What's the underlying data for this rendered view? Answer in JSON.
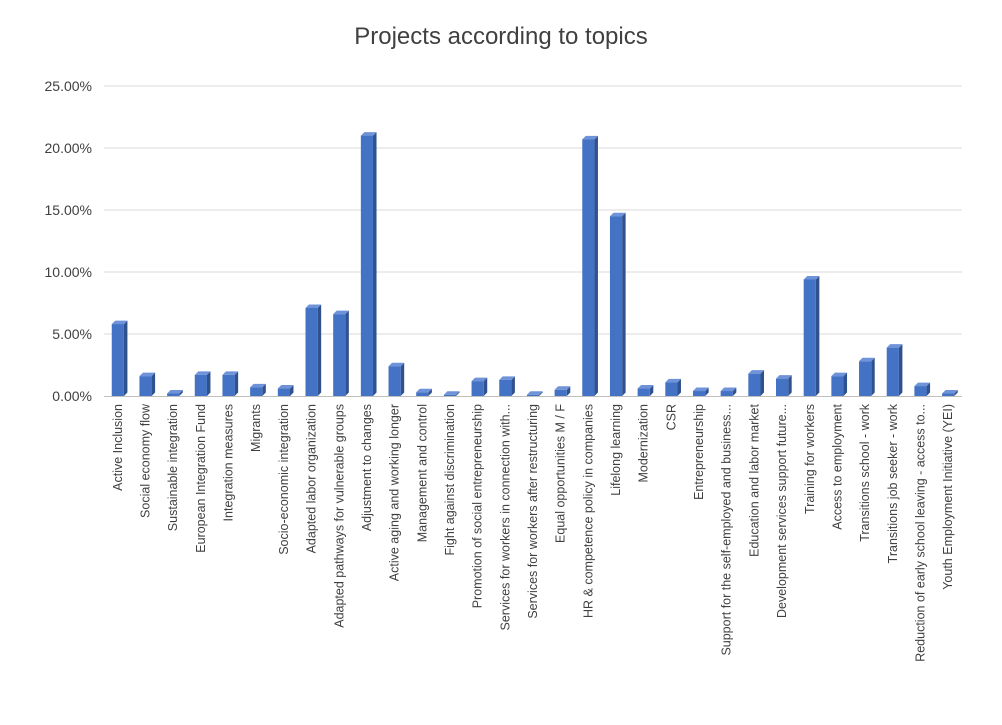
{
  "chart_data": {
    "type": "bar",
    "title": "Projects according to topics",
    "xlabel": "",
    "ylabel": "",
    "ylim": [
      0,
      0.25
    ],
    "yticks": [
      "0.00%",
      "5.00%",
      "10.00%",
      "15.00%",
      "20.00%",
      "25.00%"
    ],
    "grid": true,
    "bar_color": "#4472C4",
    "categories": [
      "Active Inclusion",
      "Social economy flow",
      "Sustainable integration",
      "European Integration Fund",
      "Integration measures",
      "Migrants",
      "Socio-economic integration",
      "Adapted labor organization",
      "Adapted pathways for vulnerable groups",
      "Adjustment to changes",
      "Active aging and working longer",
      "Management and control",
      "Fight against discrimination",
      "Promotion of social entrepreneurship",
      "Services for workers in connection with...",
      "Services for workers after restructuring",
      "Equal opportunities M / F",
      "HR & competence policy in companies",
      "Lifelong learning",
      "Modernization",
      "CSR",
      "Entrepreneurship",
      "Support for the self-employed and business...",
      "Education and labor market",
      "Development services support future...",
      "Training for workers",
      "Access to employment",
      "Transitions school - work",
      "Transitions job seeker - work",
      "Reduction of early school leaving - access to...",
      "Youth Employment Initiative (YEI)"
    ],
    "values": [
      0.058,
      0.016,
      0.002,
      0.017,
      0.017,
      0.007,
      0.006,
      0.071,
      0.066,
      0.21,
      0.024,
      0.003,
      0.001,
      0.012,
      0.013,
      0.001,
      0.005,
      0.207,
      0.145,
      0.006,
      0.011,
      0.004,
      0.004,
      0.018,
      0.014,
      0.094,
      0.016,
      0.028,
      0.039,
      0.008,
      0.002
    ]
  }
}
